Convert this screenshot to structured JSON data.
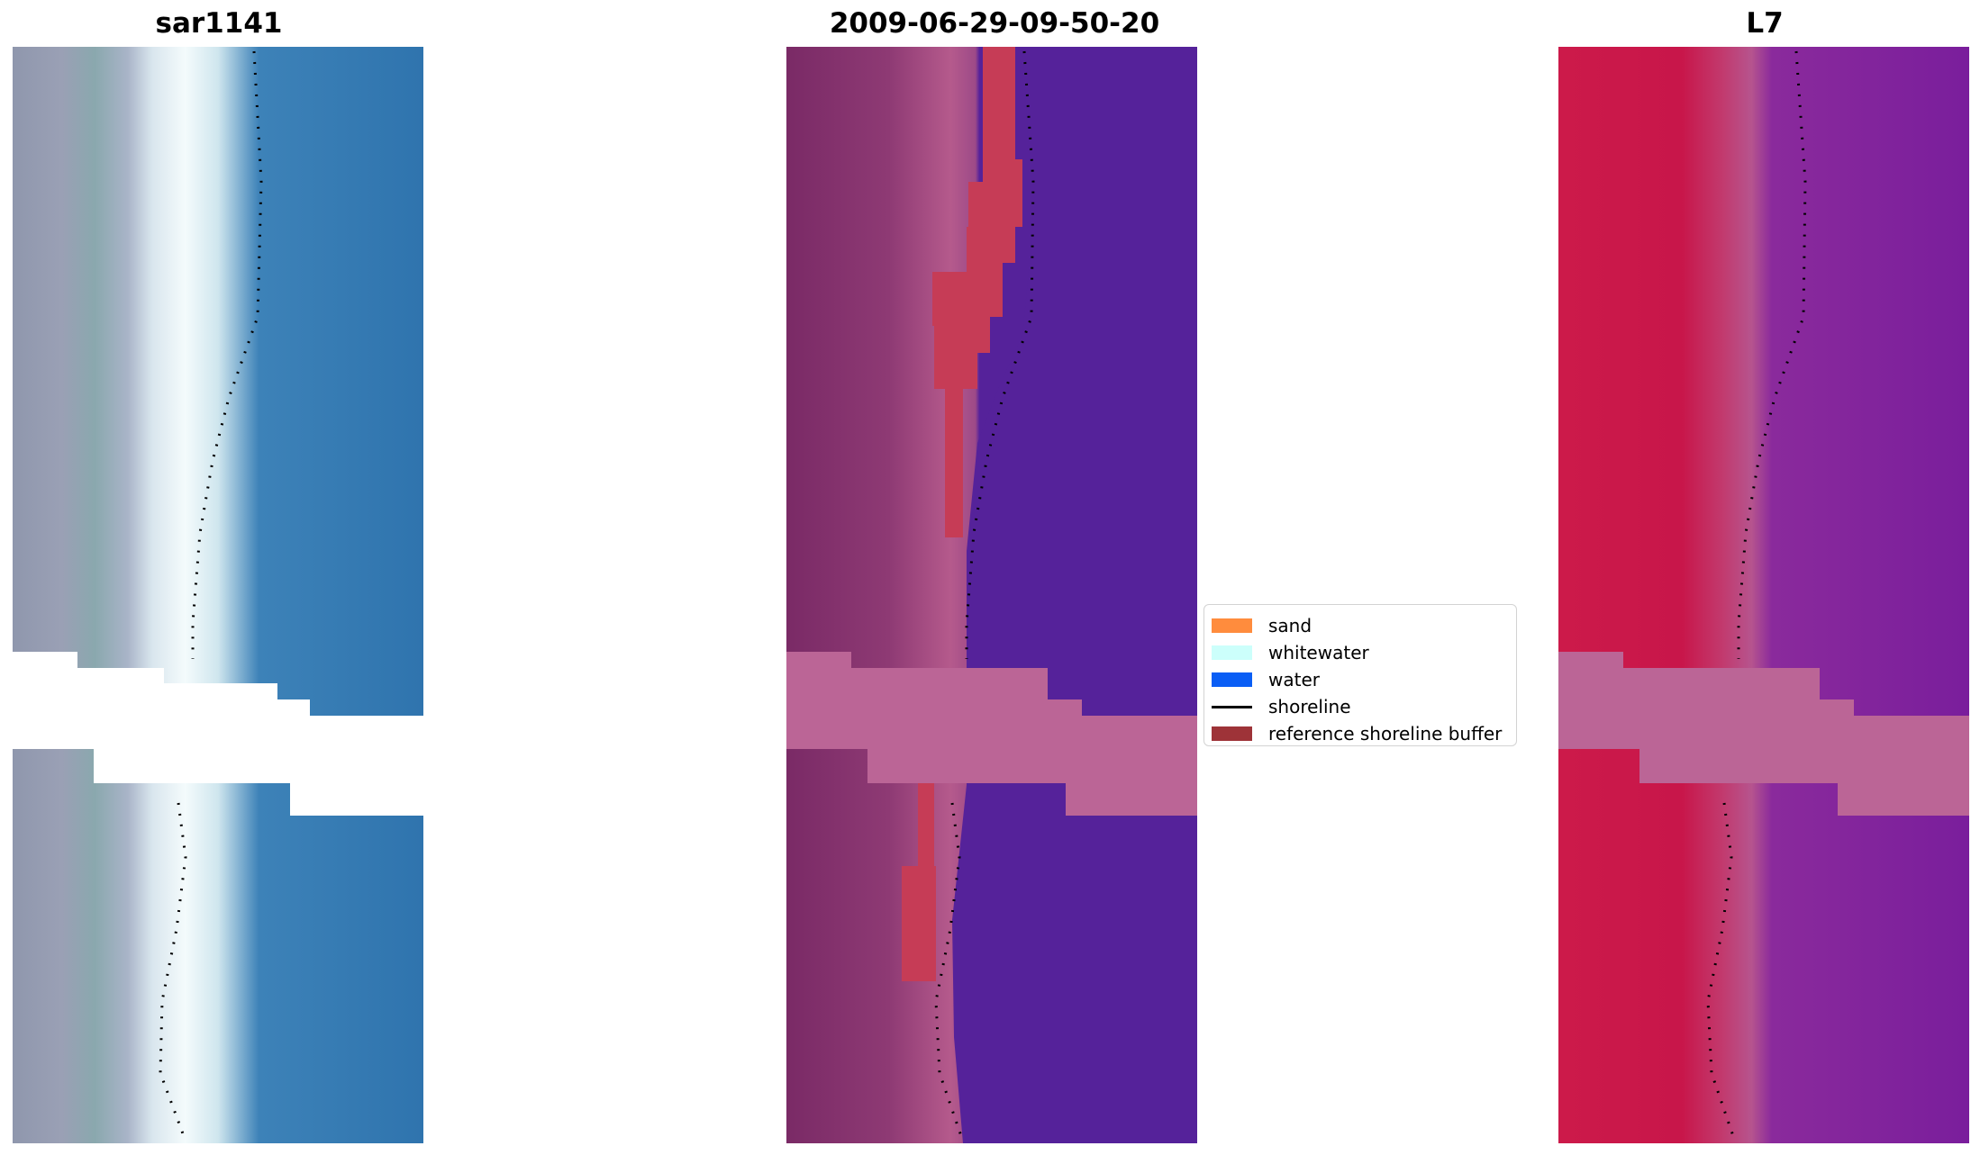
{
  "panels": [
    {
      "title": "sar1141",
      "image": "RGB satellite composite of coastline with dotted shoreline overlay"
    },
    {
      "title": "2009-06-29-09-50-20",
      "image": "classified image showing reference shoreline buffer and water with dotted shoreline overlay"
    },
    {
      "title": "L7",
      "image": "false-color index image with dotted shoreline overlay"
    }
  ],
  "legend": {
    "items": [
      {
        "label": "sand",
        "color": "#ff8c3d",
        "kind": "patch"
      },
      {
        "label": "whitewater",
        "color": "#ccfffb",
        "kind": "patch"
      },
      {
        "label": "water",
        "color": "#0a5ef5",
        "kind": "patch"
      },
      {
        "label": "shoreline",
        "color": "#000000",
        "kind": "line"
      },
      {
        "label": "reference shoreline buffer",
        "color": "#9e3338",
        "kind": "patch"
      }
    ]
  }
}
